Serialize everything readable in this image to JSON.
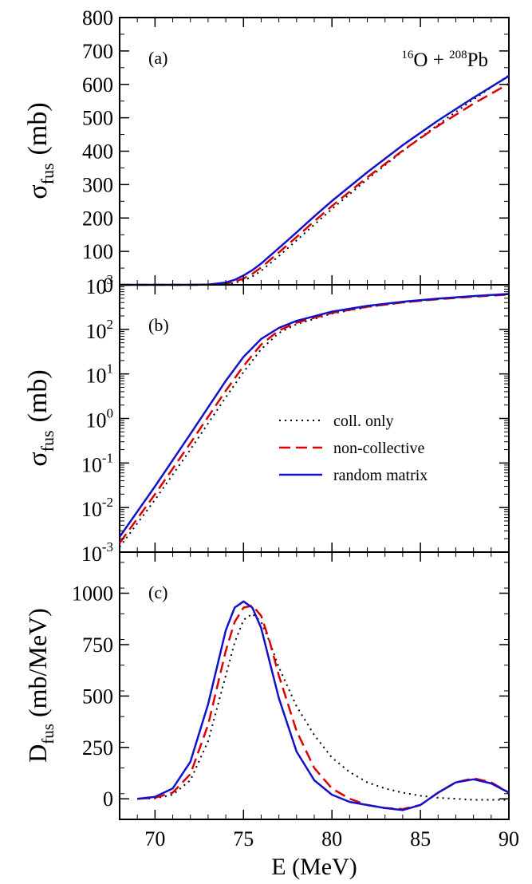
{
  "chart_data": [
    {
      "type": "line",
      "panel_label": "(a)",
      "annotation": {
        "proj_mass": "16",
        "proj": "O",
        "plus": " + ",
        "targ_mass": "208",
        "targ": "Pb"
      },
      "ylabel": {
        "sym": "σ",
        "sub": "fus",
        "unit": "(mb)"
      },
      "xlim": [
        68,
        90
      ],
      "ylim": [
        0,
        800
      ],
      "yscale": "linear",
      "yticks": [
        0,
        100,
        200,
        300,
        400,
        500,
        600,
        700,
        800
      ],
      "ytick_labels": [
        "0",
        "100",
        "200",
        "300",
        "400",
        "500",
        "600",
        "700",
        "800"
      ],
      "series": [
        {
          "style": "dotted",
          "color": "#000000",
          "x": [
            68,
            70,
            72,
            73,
            74,
            74.5,
            75,
            75.5,
            76,
            77,
            78,
            79,
            80,
            82,
            84,
            86,
            88,
            90
          ],
          "y": [
            0,
            0,
            0,
            0.2,
            2.5,
            6,
            13,
            25,
            42,
            86,
            133,
            180,
            227,
            316,
            400,
            480,
            555,
            627
          ]
        },
        {
          "style": "dashed",
          "color": "#dd0000",
          "x": [
            68,
            70,
            72,
            73,
            74,
            74.5,
            75,
            75.5,
            76,
            77,
            78,
            79,
            80,
            82,
            84,
            86,
            88,
            90
          ],
          "y": [
            0,
            0,
            0,
            0.3,
            3.5,
            9,
            19,
            33,
            52,
            97,
            143,
            190,
            236,
            322,
            402,
            476,
            542,
            602
          ]
        },
        {
          "style": "solid",
          "color": "#1111cc",
          "x": [
            68,
            70,
            72,
            73,
            74,
            74.5,
            75,
            75.5,
            76,
            77,
            78,
            79,
            80,
            82,
            84,
            86,
            88,
            90
          ],
          "y": [
            0,
            0,
            0,
            0.8,
            7,
            15,
            28,
            44,
            64,
            110,
            157,
            205,
            251,
            337,
            418,
            492,
            560,
            625
          ]
        }
      ]
    },
    {
      "type": "line",
      "panel_label": "(b)",
      "ylabel": {
        "sym": "σ",
        "sub": "fus",
        "unit": "(mb)"
      },
      "xlim": [
        68,
        90
      ],
      "ylim": [
        0.001,
        1000
      ],
      "yscale": "log",
      "yticks": [
        0.001,
        0.01,
        0.1,
        1,
        10,
        100,
        1000
      ],
      "ytick_labels": [
        {
          "base": "10",
          "exp": "-3"
        },
        {
          "base": "10",
          "exp": "-2"
        },
        {
          "base": "10",
          "exp": "-1"
        },
        {
          "base": "10",
          "exp": "0"
        },
        {
          "base": "10",
          "exp": "1"
        },
        {
          "base": "10",
          "exp": "2"
        },
        {
          "base": "10",
          "exp": "3"
        }
      ],
      "legend": {
        "position": "center-right",
        "entries": [
          {
            "label": "coll. only",
            "style": "dotted",
            "color": "#000000"
          },
          {
            "label": "non-collective",
            "style": "dashed",
            "color": "#dd0000"
          },
          {
            "label": "random matrix",
            "style": "solid",
            "color": "#1111cc"
          }
        ]
      },
      "series": [
        {
          "style": "dotted",
          "color": "#000000",
          "x": [
            68,
            70,
            72,
            74,
            75,
            76,
            77,
            78,
            80,
            82,
            84,
            86,
            88,
            90
          ],
          "y": [
            0.0013,
            0.015,
            0.2,
            3,
            11,
            36,
            83,
            131,
            226,
            316,
            400,
            480,
            555,
            627
          ]
        },
        {
          "style": "dashed",
          "color": "#dd0000",
          "x": [
            68,
            70,
            72,
            74,
            75,
            76,
            77,
            78,
            80,
            82,
            84,
            86,
            88,
            90
          ],
          "y": [
            0.0016,
            0.02,
            0.28,
            4.2,
            15,
            46,
            94,
            141,
            234,
            322,
            402,
            476,
            542,
            602
          ]
        },
        {
          "style": "solid",
          "color": "#1111cc",
          "x": [
            68,
            70,
            72,
            74,
            75,
            76,
            77,
            78,
            80,
            82,
            84,
            86,
            88,
            90
          ],
          "y": [
            0.0022,
            0.03,
            0.45,
            7,
            24,
            61,
            108,
            155,
            250,
            337,
            418,
            492,
            560,
            625
          ]
        }
      ]
    },
    {
      "type": "line",
      "panel_label": "(c)",
      "ylabel": {
        "sym": "D",
        "sub": "fus",
        "unit": "(mb/MeV)"
      },
      "xlabel": "E (MeV)",
      "xlim": [
        68,
        90
      ],
      "ylim": [
        -100,
        1200
      ],
      "yscale": "linear",
      "yticks": [
        0,
        250,
        500,
        750,
        1000
      ],
      "ytick_labels": [
        "0",
        "250",
        "500",
        "750",
        "1000"
      ],
      "xticks": [
        70,
        75,
        80,
        85,
        90
      ],
      "xtick_labels": [
        "70",
        "75",
        "80",
        "85",
        "90"
      ],
      "series": [
        {
          "style": "dotted",
          "color": "#000000",
          "x": [
            69,
            70,
            71,
            72,
            73,
            74,
            74.5,
            75,
            75.5,
            76,
            76.5,
            77,
            78,
            79,
            80,
            81,
            82,
            83,
            84,
            85,
            86,
            87,
            88,
            89,
            90
          ],
          "y": [
            0,
            2,
            20,
            90,
            280,
            600,
            760,
            870,
            900,
            860,
            760,
            640,
            450,
            310,
            200,
            130,
            80,
            50,
            30,
            15,
            5,
            0,
            -5,
            -5,
            -5
          ]
        },
        {
          "style": "dashed",
          "color": "#dd0000",
          "x": [
            69,
            70,
            71,
            72,
            73,
            74,
            74.5,
            75,
            75.5,
            76,
            76.5,
            77,
            78,
            79,
            80,
            81,
            82,
            83,
            84,
            85,
            86,
            87,
            88,
            89,
            90
          ],
          "y": [
            0,
            5,
            30,
            120,
            360,
            720,
            860,
            930,
            940,
            890,
            760,
            600,
            330,
            150,
            50,
            0,
            -30,
            -45,
            -50,
            -30,
            30,
            80,
            100,
            80,
            30
          ]
        },
        {
          "style": "solid",
          "color": "#1111cc",
          "x": [
            69,
            70,
            71,
            72,
            73,
            74,
            74.5,
            75,
            75.5,
            76,
            76.5,
            77,
            78,
            79,
            80,
            81,
            82,
            83,
            84,
            85,
            86,
            87,
            88,
            89,
            90
          ],
          "y": [
            0,
            10,
            50,
            180,
            460,
            820,
            930,
            960,
            930,
            830,
            660,
            490,
            230,
            90,
            20,
            -15,
            -30,
            -45,
            -55,
            -30,
            30,
            80,
            95,
            75,
            30
          ]
        }
      ]
    }
  ]
}
